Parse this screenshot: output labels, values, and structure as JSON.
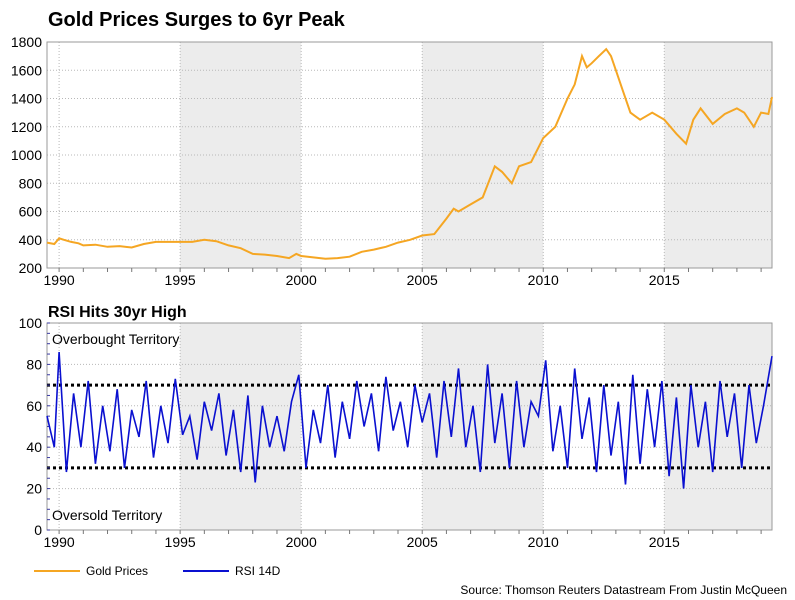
{
  "chart_data": [
    {
      "type": "line",
      "title": "Gold Prices Surges to 6yr Peak",
      "xlabel": "",
      "ylabel": "",
      "xlim": [
        1989.5,
        2019.45
      ],
      "ylim": [
        200,
        1800
      ],
      "yticks": [
        200,
        400,
        600,
        800,
        1000,
        1200,
        1400,
        1600,
        1800
      ],
      "xticks": [
        1990,
        1995,
        2000,
        2005,
        2010,
        2015
      ],
      "grid": true,
      "shaded_bands": [
        [
          1995,
          2000
        ],
        [
          2005,
          2010
        ],
        [
          2015,
          2019.45
        ]
      ],
      "series": [
        {
          "name": "Gold Prices",
          "color": "#f5a623",
          "x": [
            1989.5,
            1989.8,
            1990.0,
            1990.2,
            1990.5,
            1990.8,
            1991.0,
            1991.5,
            1992.0,
            1992.5,
            1993.0,
            1993.5,
            1994.0,
            1994.5,
            1995.0,
            1995.5,
            1996.0,
            1996.5,
            1997.0,
            1997.5,
            1998.0,
            1998.5,
            1999.0,
            1999.5,
            1999.8,
            2000.0,
            2000.5,
            2001.0,
            2001.5,
            2002.0,
            2002.5,
            2003.0,
            2003.5,
            2004.0,
            2004.5,
            2005.0,
            2005.5,
            2006.0,
            2006.3,
            2006.5,
            2007.0,
            2007.5,
            2008.0,
            2008.3,
            2008.7,
            2009.0,
            2009.5,
            2010.0,
            2010.5,
            2011.0,
            2011.3,
            2011.6,
            2011.8,
            2012.0,
            2012.3,
            2012.6,
            2012.8,
            2013.0,
            2013.3,
            2013.6,
            2014.0,
            2014.5,
            2015.0,
            2015.5,
            2015.9,
            2016.2,
            2016.5,
            2017.0,
            2017.5,
            2018.0,
            2018.3,
            2018.7,
            2019.0,
            2019.3,
            2019.45
          ],
          "y": [
            380,
            370,
            410,
            400,
            385,
            375,
            360,
            365,
            350,
            355,
            345,
            370,
            385,
            385,
            385,
            385,
            400,
            390,
            360,
            340,
            300,
            295,
            285,
            270,
            300,
            285,
            275,
            265,
            270,
            280,
            315,
            330,
            350,
            380,
            400,
            430,
            440,
            550,
            620,
            600,
            650,
            700,
            920,
            880,
            800,
            920,
            950,
            1120,
            1200,
            1400,
            1500,
            1700,
            1620,
            1650,
            1700,
            1750,
            1700,
            1600,
            1450,
            1300,
            1250,
            1300,
            1250,
            1150,
            1080,
            1250,
            1330,
            1220,
            1290,
            1330,
            1300,
            1200,
            1300,
            1290,
            1410
          ]
        }
      ]
    },
    {
      "type": "line",
      "title": "RSI Hits 30yr High",
      "xlabel": "",
      "ylabel": "",
      "xlim": [
        1989.5,
        2019.45
      ],
      "ylim": [
        0,
        100
      ],
      "yticks": [
        0,
        20,
        40,
        60,
        80,
        100
      ],
      "xticks": [
        1990,
        1995,
        2000,
        2005,
        2010,
        2015
      ],
      "grid": true,
      "shaded_bands": [
        [
          1995,
          2000
        ],
        [
          2005,
          2010
        ],
        [
          2015,
          2019.45
        ]
      ],
      "reference_lines": [
        30,
        70
      ],
      "annotations": [
        "Overbought Territory",
        "Oversold Territory"
      ],
      "series": [
        {
          "name": "RSI 14D",
          "color": "#0a10d0",
          "x": [
            1989.5,
            1989.8,
            1990.0,
            1990.3,
            1990.6,
            1990.9,
            1991.2,
            1991.5,
            1991.8,
            1992.1,
            1992.4,
            1992.7,
            1993.0,
            1993.3,
            1993.6,
            1993.9,
            1994.2,
            1994.5,
            1994.8,
            1995.1,
            1995.4,
            1995.7,
            1996.0,
            1996.3,
            1996.6,
            1996.9,
            1997.2,
            1997.5,
            1997.8,
            1998.1,
            1998.4,
            1998.7,
            1999.0,
            1999.3,
            1999.6,
            1999.9,
            2000.2,
            2000.5,
            2000.8,
            2001.1,
            2001.4,
            2001.7,
            2002.0,
            2002.3,
            2002.6,
            2002.9,
            2003.2,
            2003.5,
            2003.8,
            2004.1,
            2004.4,
            2004.7,
            2005.0,
            2005.3,
            2005.6,
            2005.9,
            2006.2,
            2006.5,
            2006.8,
            2007.1,
            2007.4,
            2007.7,
            2008.0,
            2008.3,
            2008.6,
            2008.9,
            2009.2,
            2009.5,
            2009.8,
            2010.1,
            2010.4,
            2010.7,
            2011.0,
            2011.3,
            2011.6,
            2011.9,
            2012.2,
            2012.5,
            2012.8,
            2013.1,
            2013.4,
            2013.7,
            2014.0,
            2014.3,
            2014.6,
            2014.9,
            2015.2,
            2015.5,
            2015.8,
            2016.1,
            2016.4,
            2016.7,
            2017.0,
            2017.3,
            2017.6,
            2017.9,
            2018.2,
            2018.5,
            2018.8,
            2019.1,
            2019.45
          ],
          "y": [
            55,
            40,
            86,
            28,
            66,
            40,
            72,
            32,
            60,
            38,
            68,
            30,
            58,
            45,
            72,
            35,
            60,
            42,
            73,
            46,
            55,
            34,
            62,
            48,
            66,
            36,
            58,
            28,
            65,
            23,
            60,
            40,
            55,
            38,
            62,
            75,
            30,
            58,
            42,
            70,
            35,
            62,
            44,
            72,
            50,
            66,
            38,
            74,
            48,
            62,
            40,
            70,
            52,
            66,
            35,
            72,
            45,
            78,
            40,
            60,
            28,
            80,
            42,
            66,
            30,
            72,
            40,
            62,
            55,
            82,
            38,
            60,
            30,
            78,
            44,
            64,
            28,
            70,
            36,
            62,
            22,
            75,
            32,
            68,
            40,
            72,
            26,
            64,
            20,
            70,
            40,
            62,
            28,
            72,
            45,
            66,
            30,
            70,
            42,
            60,
            84
          ]
        }
      ]
    }
  ],
  "legend": {
    "items": [
      {
        "label": "Gold Prices",
        "color": "#f5a623"
      },
      {
        "label": "RSI 14D",
        "color": "#0a10d0"
      }
    ]
  },
  "source": "Source: Thomson Reuters Datastream From Justin McQueen"
}
